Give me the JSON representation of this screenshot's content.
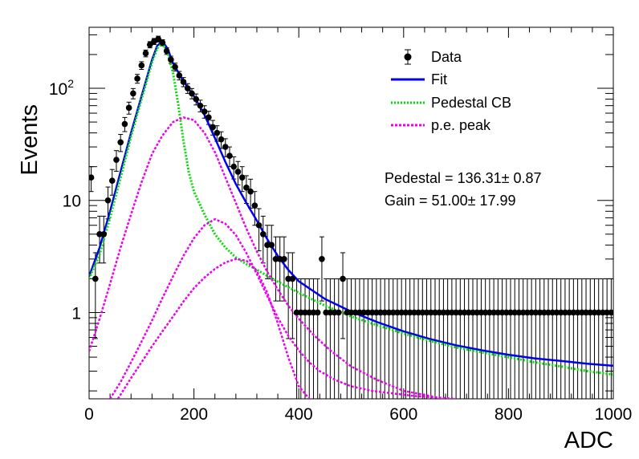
{
  "chart_data": {
    "type": "scatter",
    "title": "",
    "xlabel": "ADC",
    "ylabel": "Events",
    "xlim": [
      0,
      1000
    ],
    "ylim": [
      0.17,
      350
    ],
    "yscale": "log",
    "grid": false,
    "legend_position": "top-right",
    "x_ticks": [
      {
        "value": 0,
        "label": "0"
      },
      {
        "value": 200,
        "label": "200"
      },
      {
        "value": 400,
        "label": "400"
      },
      {
        "value": 600,
        "label": "600"
      },
      {
        "value": 800,
        "label": "800"
      },
      {
        "value": 1000,
        "label": "1000"
      }
    ],
    "y_ticks": [
      {
        "value": 1,
        "label": "1"
      },
      {
        "value": 10,
        "label": "10"
      },
      {
        "value": 100,
        "label": "10",
        "sup": "2"
      }
    ],
    "series": [
      {
        "name": "Data",
        "kind": "points",
        "color": "#000000",
        "x": [
          4,
          12,
          20,
          28,
          36,
          44,
          52,
          60,
          68,
          76,
          84,
          92,
          100,
          108,
          116,
          124,
          132,
          140,
          148,
          156,
          164,
          172,
          180,
          188,
          196,
          204,
          212,
          220,
          228,
          236,
          244,
          252,
          260,
          268,
          276,
          284,
          292,
          300,
          308,
          316,
          324,
          332,
          340,
          348,
          356,
          364,
          372,
          380,
          388,
          396,
          404,
          412,
          420,
          428,
          436,
          444,
          452,
          460,
          468,
          476,
          484,
          492,
          500,
          508,
          516,
          524,
          532,
          540,
          548,
          556,
          564,
          572,
          580,
          588,
          596,
          604,
          612,
          620,
          628,
          636,
          644,
          652,
          660,
          668,
          676,
          684,
          692,
          700,
          708,
          716,
          724,
          732,
          740,
          748,
          756,
          764,
          772,
          780,
          788,
          796,
          804,
          812,
          820,
          828,
          836,
          844,
          852,
          860,
          868,
          876,
          884,
          892,
          900,
          908,
          916,
          924,
          932,
          940,
          948,
          956,
          964,
          972,
          980,
          988,
          996
        ],
        "y": [
          16,
          2,
          5,
          5,
          10,
          15,
          23,
          33,
          48,
          67,
          90,
          122,
          160,
          205,
          245,
          262,
          275,
          255,
          215,
          180,
          155,
          130,
          114,
          100,
          90,
          80,
          70,
          62,
          55,
          45,
          40,
          35,
          30,
          25,
          20,
          18,
          16,
          13,
          12,
          9,
          6,
          5,
          4,
          4,
          3,
          3,
          3,
          2,
          2,
          1,
          1,
          1,
          1,
          1,
          1,
          3,
          1,
          1,
          1,
          1,
          2,
          1,
          1,
          1,
          1,
          1,
          1,
          1,
          1,
          1,
          1,
          1,
          1,
          1,
          1,
          1,
          1,
          1,
          1,
          1,
          1,
          1,
          1,
          1,
          1,
          1,
          1,
          1,
          1,
          1,
          1,
          1,
          1,
          1,
          1,
          1,
          1,
          1,
          1,
          1,
          1,
          1,
          1,
          1,
          1,
          1,
          1,
          1,
          1,
          1,
          1,
          1,
          1,
          1,
          1,
          1,
          1,
          1,
          1,
          1,
          1,
          1,
          1,
          1,
          1
        ]
      },
      {
        "name": "Fit",
        "kind": "line",
        "color": "#0000ee",
        "width": 2.5,
        "x": [
          0,
          20,
          40,
          60,
          80,
          100,
          120,
          130,
          140,
          150,
          160,
          180,
          200,
          220,
          240,
          260,
          280,
          300,
          320,
          340,
          360,
          380,
          400,
          450,
          500,
          550,
          600,
          650,
          700,
          750,
          800,
          850,
          900,
          950,
          1000
        ],
        "y": [
          2.1,
          3.8,
          8,
          18,
          40,
          85,
          180,
          240,
          262,
          225,
          168,
          115,
          85,
          58,
          36,
          22,
          14,
          9.5,
          6.6,
          4.5,
          3.2,
          2.4,
          1.9,
          1.32,
          1.02,
          0.82,
          0.68,
          0.58,
          0.51,
          0.46,
          0.42,
          0.39,
          0.37,
          0.35,
          0.335
        ]
      },
      {
        "name": "Pedestal CB",
        "kind": "line",
        "dash": "dotted",
        "color": "#00dd00",
        "width": 3,
        "x": [
          0,
          20,
          40,
          60,
          80,
          100,
          120,
          130,
          140,
          150,
          160,
          170,
          180,
          190,
          200,
          220,
          240,
          260,
          280,
          300,
          320,
          350,
          400,
          450,
          500,
          550,
          600,
          650,
          700,
          750,
          800,
          850,
          900,
          950,
          1000
        ],
        "y": [
          2,
          3.3,
          7,
          16,
          37,
          80,
          170,
          228,
          252,
          205,
          138,
          72,
          34,
          18,
          12,
          7.5,
          5,
          3.8,
          3.1,
          2.7,
          2.4,
          2,
          1.5,
          1.15,
          0.92,
          0.77,
          0.65,
          0.56,
          0.49,
          0.44,
          0.4,
          0.36,
          0.33,
          0.3,
          0.28
        ]
      },
      {
        "name": "p.e. peak",
        "kind": "line",
        "dash": "dashed",
        "color": "#ee00ee",
        "width": 2.5,
        "x": [
          0,
          20,
          40,
          60,
          80,
          100,
          120,
          140,
          160,
          180,
          200,
          220,
          240,
          260,
          280,
          300,
          320,
          340,
          360,
          380,
          400,
          430,
          460,
          500,
          550,
          600,
          650,
          700
        ],
        "y": [
          0.45,
          0.88,
          1.8,
          3.8,
          7.5,
          14.5,
          26,
          38,
          50,
          55,
          52,
          40,
          27,
          16,
          9.5,
          5.6,
          3.5,
          2.3,
          1.6,
          1.15,
          0.88,
          0.62,
          0.46,
          0.33,
          0.25,
          0.2,
          0.18,
          0.16
        ]
      },
      {
        "name": "",
        "kind": "line",
        "dash": "dashed",
        "color": "#ee00ee",
        "width": 2.5,
        "x": [
          40,
          60,
          80,
          100,
          120,
          140,
          160,
          180,
          200,
          220,
          240,
          260,
          280,
          300,
          320,
          340,
          360,
          380,
          400,
          420,
          440,
          470,
          500,
          540,
          580,
          620,
          660,
          700
        ],
        "y": [
          0.17,
          0.24,
          0.36,
          0.55,
          0.85,
          1.35,
          2.1,
          3.2,
          4.6,
          6,
          6.8,
          6.2,
          4.9,
          3.4,
          2.2,
          1.4,
          0.9,
          0.62,
          0.46,
          0.36,
          0.3,
          0.25,
          0.22,
          0.2,
          0.19,
          0.18,
          0.175,
          0.17
        ]
      },
      {
        "name": "",
        "kind": "line",
        "dash": "dashed",
        "color": "#ee00ee",
        "width": 2.5,
        "x": [
          55,
          80,
          100,
          120,
          140,
          160,
          180,
          200,
          220,
          240,
          260,
          280,
          300,
          320,
          340,
          360,
          380,
          400,
          420
        ],
        "y": [
          0.17,
          0.26,
          0.36,
          0.5,
          0.68,
          0.92,
          1.25,
          1.65,
          2.05,
          2.45,
          2.8,
          3,
          2.9,
          2.35,
          1.5,
          0.8,
          0.4,
          0.22,
          0.17
        ]
      }
    ],
    "annotations": [
      "Pedestal = 136.31± 0.87",
      "Gain = 51.00± 17.99"
    ]
  }
}
